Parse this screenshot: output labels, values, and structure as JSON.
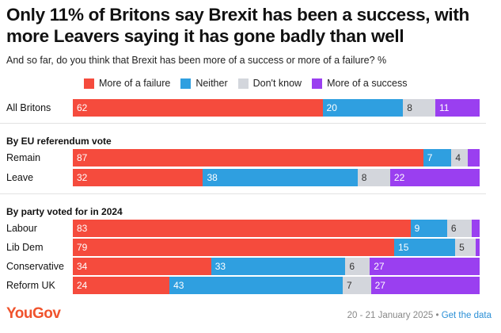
{
  "title": "Only 11% of Britons say Brexit has been a success, with more Leavers saying it has gone badly than well",
  "subtitle": "And so far, do you think that Brexit has been more of a success or more of a failure? %",
  "legend": [
    {
      "label": "More of a failure",
      "color": "#f54b3d"
    },
    {
      "label": "Neither",
      "color": "#2f9fe0"
    },
    {
      "label": "Don't know",
      "color": "#d3d6dc"
    },
    {
      "label": "More of a success",
      "color": "#9a3ff0"
    }
  ],
  "sections": {
    "eu_vote": "By EU referendum vote",
    "party": "By party voted for in 2024"
  },
  "chart_data": {
    "type": "bar",
    "orientation": "horizontal",
    "stacked": true,
    "title": "Only 11% of Britons say Brexit has been a success, with more Leavers saying it has gone badly than well",
    "xlim": [
      0,
      100
    ],
    "series_names": [
      "More of a failure",
      "Neither",
      "Don't know",
      "More of a success"
    ],
    "categories": [
      "All Britons",
      "Remain",
      "Leave",
      "Labour",
      "Lib Dem",
      "Conservative",
      "Reform UK"
    ],
    "rows": [
      {
        "label": "All Britons",
        "values": [
          62,
          20,
          8,
          11
        ],
        "labels": [
          "62",
          "20",
          "8",
          "11"
        ]
      },
      {
        "label": "Remain",
        "values": [
          87,
          7,
          4,
          3
        ],
        "labels": [
          "87",
          "7",
          "4",
          ""
        ]
      },
      {
        "label": "Leave",
        "values": [
          32,
          38,
          8,
          22
        ],
        "labels": [
          "32",
          "38",
          "8",
          "22"
        ]
      },
      {
        "label": "Labour",
        "values": [
          83,
          9,
          6,
          2
        ],
        "labels": [
          "83",
          "9",
          "6",
          ""
        ]
      },
      {
        "label": "Lib Dem",
        "values": [
          79,
          15,
          5,
          1
        ],
        "labels": [
          "79",
          "15",
          "5",
          ""
        ]
      },
      {
        "label": "Conservative",
        "values": [
          34,
          33,
          6,
          27
        ],
        "labels": [
          "34",
          "33",
          "6",
          "27"
        ]
      },
      {
        "label": "Reform UK",
        "values": [
          24,
          43,
          7,
          27
        ],
        "labels": [
          "24",
          "43",
          "7",
          "27"
        ]
      }
    ]
  },
  "footer": {
    "brand": "YouGov",
    "date": "20 - 21 January 2025 • ",
    "link": "Get the data"
  }
}
